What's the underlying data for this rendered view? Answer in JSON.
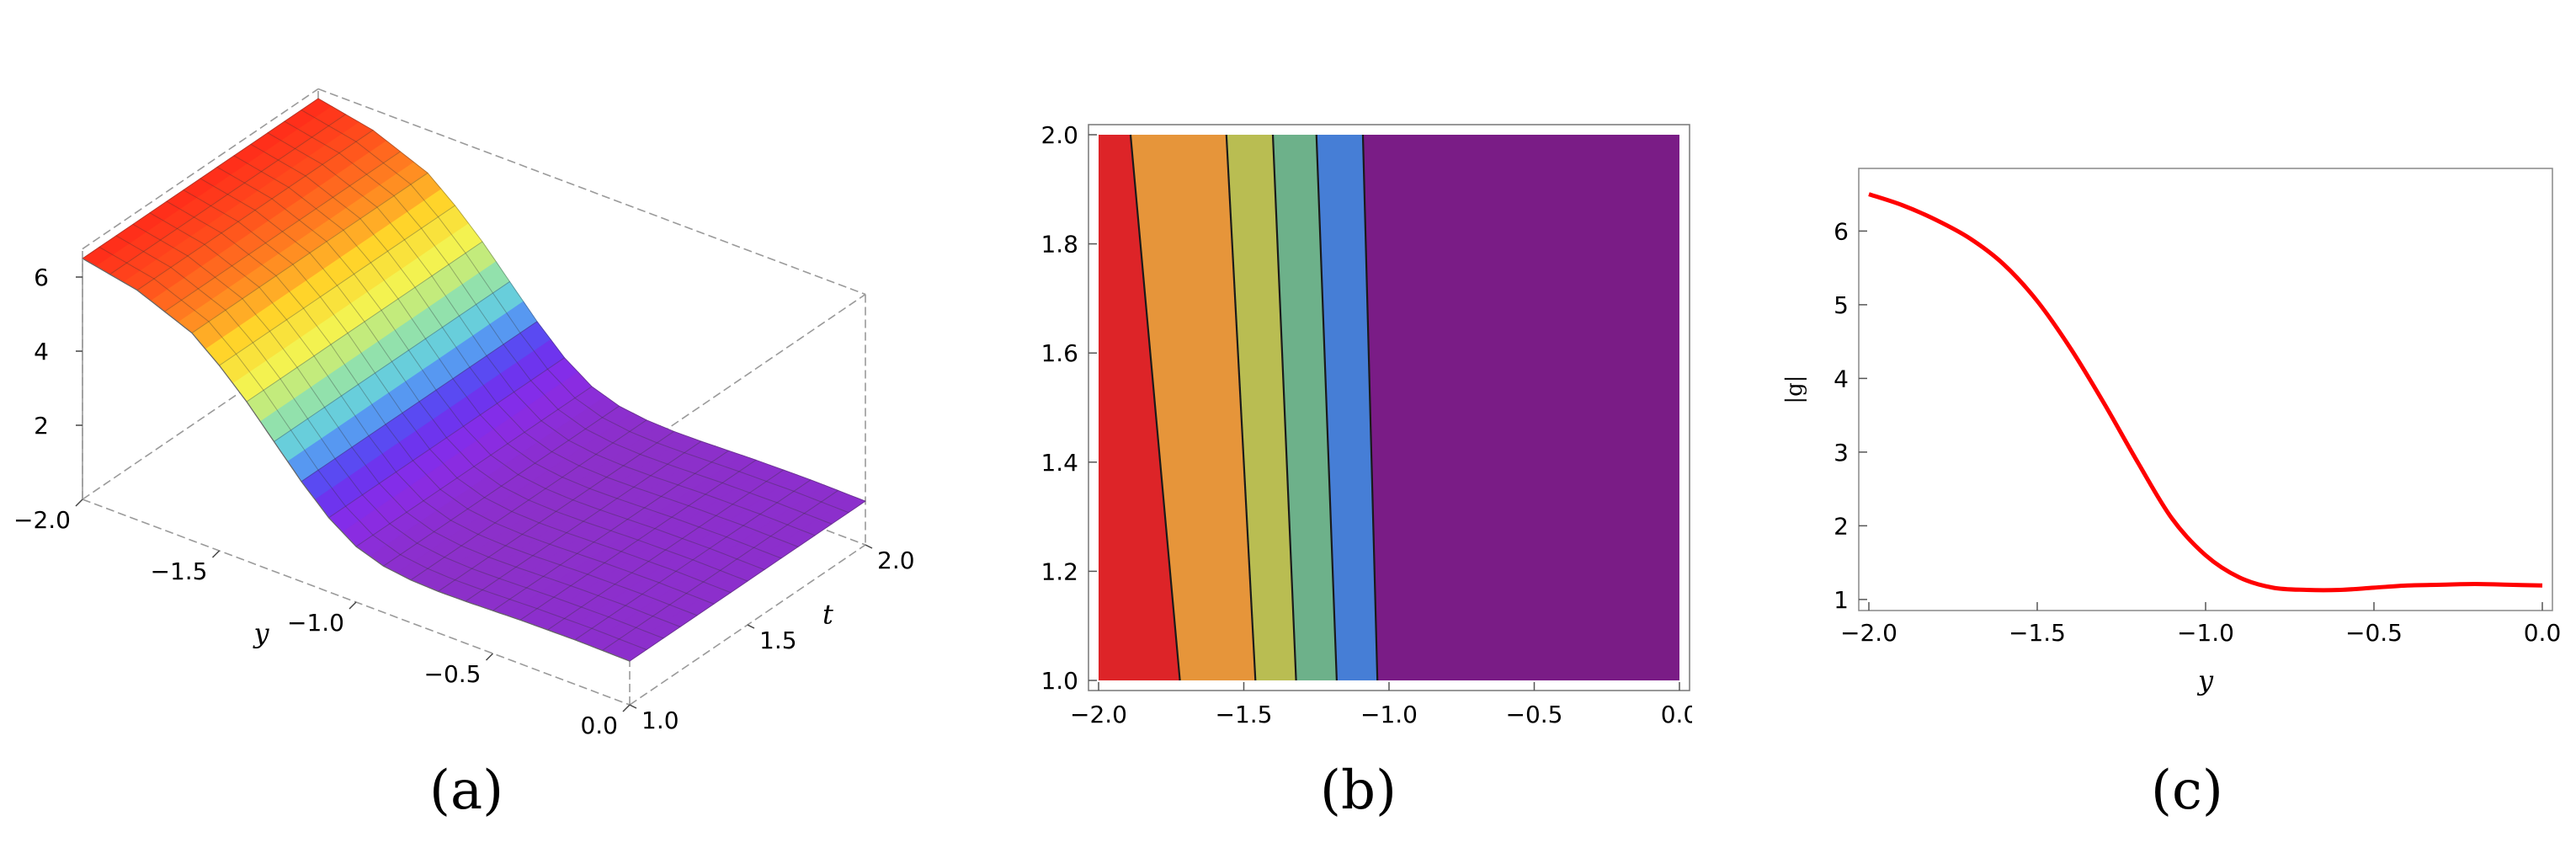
{
  "figure_labels": {
    "a": "(a)",
    "b": "(b)",
    "c": "(c)"
  },
  "chart_data": [
    {
      "type": "surface3d",
      "panel": "(a)",
      "xlabel": "y",
      "ylabel": "t",
      "zlabel": "",
      "x_ticks": [
        "−2.0",
        "−1.5",
        "−1.0",
        "−0.5",
        "0.0"
      ],
      "y_ticks": [
        "1.0",
        "1.5",
        "2.0"
      ],
      "z_ticks": [
        "2",
        "4",
        "6"
      ],
      "xlim": [
        -2.0,
        0.0
      ],
      "ylim": [
        1.0,
        2.0
      ],
      "zlim": [
        0,
        6.5
      ],
      "colormap": [
        "#ff2b1a",
        "#ff7a20",
        "#ffd42a",
        "#f3f250",
        "#9de6a0",
        "#56c6f0",
        "#5a3bf2",
        "#8a2be8",
        "#8c30c8"
      ],
      "profile_y": [
        -2.0,
        -1.8,
        -1.6,
        -1.5,
        -1.4,
        -1.3,
        -1.2,
        -1.1,
        -1.0,
        -0.9,
        -0.8,
        -0.7,
        -0.6,
        -0.4,
        -0.2,
        0.0
      ],
      "profile_z": [
        6.5,
        6.2,
        5.6,
        5.0,
        4.3,
        3.5,
        2.7,
        2.0,
        1.5,
        1.25,
        1.15,
        1.12,
        1.13,
        1.18,
        1.2,
        1.18
      ]
    },
    {
      "type": "contour",
      "panel": "(b)",
      "xlim": [
        -2.0,
        0.0
      ],
      "ylim": [
        1.0,
        2.0
      ],
      "x_ticks": [
        "−2.0",
        "−1.5",
        "−1.0",
        "−0.5",
        "0.0"
      ],
      "y_ticks": [
        "1.0",
        "1.2",
        "1.4",
        "1.6",
        "1.8",
        "2.0"
      ],
      "contour_lines": [
        {
          "y_at_t1": -1.72,
          "y_at_t2": -1.89
        },
        {
          "y_at_t1": -1.46,
          "y_at_t2": -1.56
        },
        {
          "y_at_t1": -1.32,
          "y_at_t2": -1.4
        },
        {
          "y_at_t1": -1.18,
          "y_at_t2": -1.25
        },
        {
          "y_at_t1": -1.04,
          "y_at_t2": -1.09
        }
      ],
      "region_colors": [
        "#dd2428",
        "#e6953a",
        "#b9bd52",
        "#6db18a",
        "#467ed6",
        "#7a1c86"
      ]
    },
    {
      "type": "line",
      "panel": "(c)",
      "xlabel": "y",
      "ylabel": "|g|",
      "xlim": [
        -2.0,
        0.0
      ],
      "ylim": [
        0.85,
        6.85
      ],
      "x_ticks": [
        "−2.0",
        "−1.5",
        "−1.0",
        "−0.5",
        "0.0"
      ],
      "y_ticks": [
        "1",
        "2",
        "3",
        "4",
        "5",
        "6"
      ],
      "series": [
        {
          "color": "#ff0000",
          "x": [
            -2.0,
            -1.9,
            -1.8,
            -1.7,
            -1.6,
            -1.5,
            -1.4,
            -1.3,
            -1.2,
            -1.1,
            -1.0,
            -0.9,
            -0.8,
            -0.7,
            -0.6,
            -0.5,
            -0.4,
            -0.3,
            -0.2,
            -0.1,
            0.0
          ],
          "y": [
            6.5,
            6.35,
            6.15,
            5.9,
            5.55,
            5.05,
            4.4,
            3.65,
            2.85,
            2.1,
            1.6,
            1.3,
            1.16,
            1.13,
            1.13,
            1.16,
            1.19,
            1.2,
            1.21,
            1.2,
            1.19
          ]
        }
      ]
    }
  ]
}
